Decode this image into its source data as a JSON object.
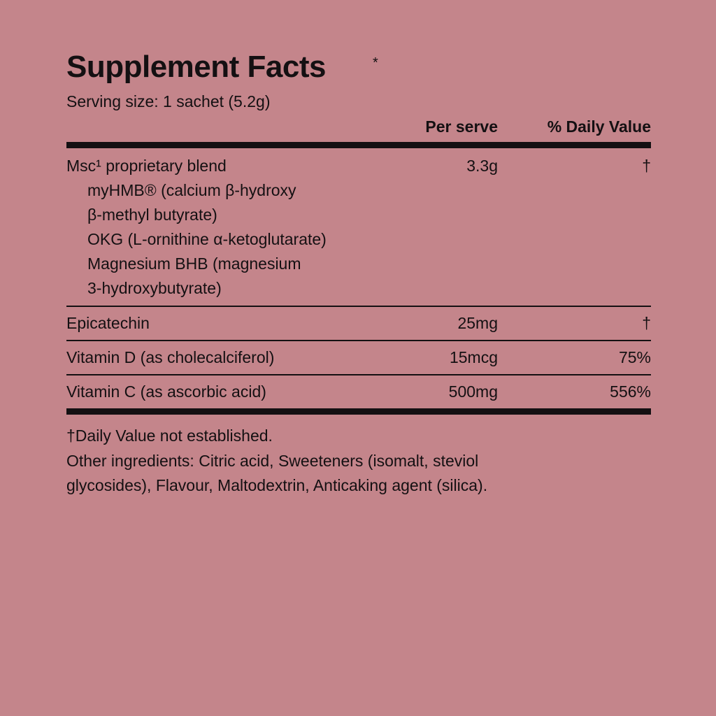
{
  "header": {
    "title": "Supplement Facts",
    "title_mark": "*",
    "serving_size": "Serving size: 1 sachet (5.2g)"
  },
  "table": {
    "columns": [
      "Per serve",
      "% Daily Value"
    ],
    "rows": [
      {
        "name": "Msc¹ proprietary blend",
        "amount": "3.3g",
        "daily_value": "†",
        "sub_lines": [
          "myHMB® (calcium β-hydroxy",
          "β-methyl butyrate)",
          "OKG (L-ornithine α-ketoglutarate)",
          "Magnesium BHB (magnesium",
          "3-hydroxybutyrate)"
        ]
      },
      {
        "name": "Epicatechin",
        "amount": "25mg",
        "daily_value": "†"
      },
      {
        "name": "Vitamin D (as cholecalciferol)",
        "amount": "15mcg",
        "daily_value": "75%"
      },
      {
        "name": "Vitamin C (as ascorbic acid)",
        "amount": "500mg",
        "daily_value": "556%"
      }
    ]
  },
  "footer": {
    "footnote": "†Daily Value not established.",
    "other_ingredients": [
      "Other ingredients: Citric acid, Sweeteners (isomalt, steviol",
      "glycosides), Flavour, Maltodextrin, Anticaking agent (silica)."
    ]
  }
}
